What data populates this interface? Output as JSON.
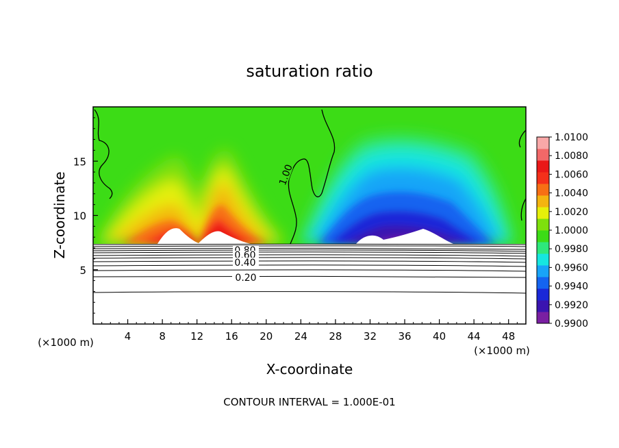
{
  "chart_data": {
    "type": "heatmap",
    "title": "saturation ratio",
    "xlabel": "X-coordinate",
    "ylabel": "Z-coordinate",
    "x_unit": "(×1000 m)",
    "y_unit": "(×1000 m)",
    "xlim": [
      0,
      50
    ],
    "ylim": [
      0,
      20
    ],
    "x_ticks": [
      4,
      8,
      12,
      16,
      20,
      24,
      28,
      32,
      36,
      40,
      44,
      48
    ],
    "y_ticks": [
      5,
      10,
      15
    ],
    "colorbar": {
      "min": 0.99,
      "max": 1.01,
      "tick_labels": [
        "1.0100",
        "1.0080",
        "1.0060",
        "1.0040",
        "1.0020",
        "1.0000",
        "0.9980",
        "0.9960",
        "0.9940",
        "0.9920",
        "0.9900"
      ],
      "colors": [
        "#7a1fa2",
        "#3a14b0",
        "#1a28d8",
        "#1464f0",
        "#18a4f8",
        "#16e6e0",
        "#2ee87c",
        "#3cdc16",
        "#7ee00c",
        "#e6f00a",
        "#f4b410",
        "#f76f14",
        "#f4301a",
        "#ea1818",
        "#f26868",
        "#f9a8a8"
      ]
    },
    "contour_labels": [
      {
        "text": "1.00"
      },
      {
        "text": "0.80"
      },
      {
        "text": "0.60"
      },
      {
        "text": "0.40"
      },
      {
        "text": "0.20"
      }
    ],
    "footer": "CONTOUR INTERVAL = 1.000E-01"
  }
}
